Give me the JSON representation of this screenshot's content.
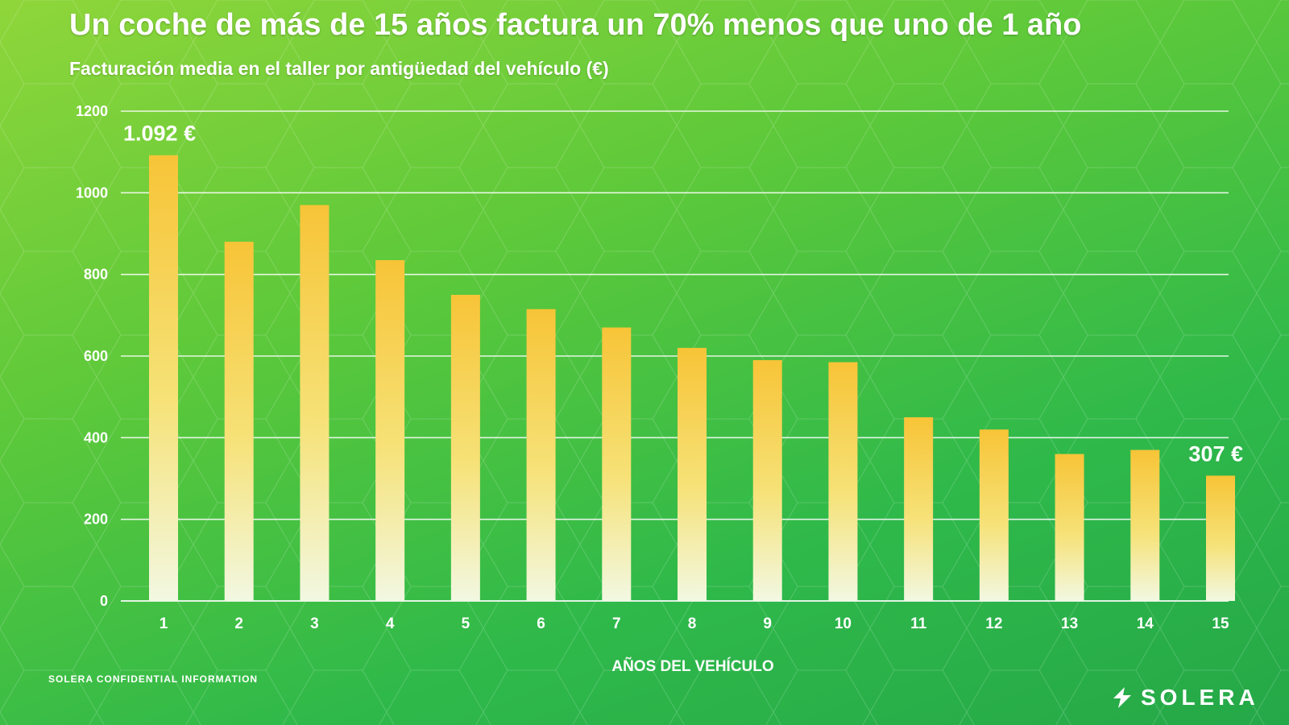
{
  "slide": {
    "title": "Un coche de más de 15 años factura un 70% menos que uno de 1 año",
    "subtitle": "Facturación media en el taller por antigüedad del vehículo (€)",
    "footer_left": "SOLERA CONFIDENTIAL INFORMATION",
    "logo_text": "SOLERA",
    "logo_icon": "solera-lightning-icon"
  },
  "colors": {
    "bar_top": "#f7c437",
    "bar_mid": "#f6e278",
    "bar_bottom": "#f2f8e2",
    "gridline": "#ffffff",
    "text": "#ffffff"
  },
  "chart_data": {
    "type": "bar",
    "categories": [
      "1",
      "2",
      "3",
      "4",
      "5",
      "6",
      "7",
      "8",
      "9",
      "10",
      "11",
      "12",
      "13",
      "14",
      "15"
    ],
    "values": [
      1092,
      880,
      970,
      835,
      750,
      715,
      670,
      620,
      590,
      585,
      450,
      420,
      360,
      370,
      307
    ],
    "xlabel": "AÑOS DEL VEHÍCULO",
    "ylabel": "",
    "ylim": [
      0,
      1200
    ],
    "yticks": [
      0,
      200,
      400,
      600,
      800,
      1000,
      1200
    ],
    "grid": true,
    "annotations": [
      {
        "category": "1",
        "text": "1.092 €"
      },
      {
        "category": "15",
        "text": "307 €"
      }
    ]
  }
}
